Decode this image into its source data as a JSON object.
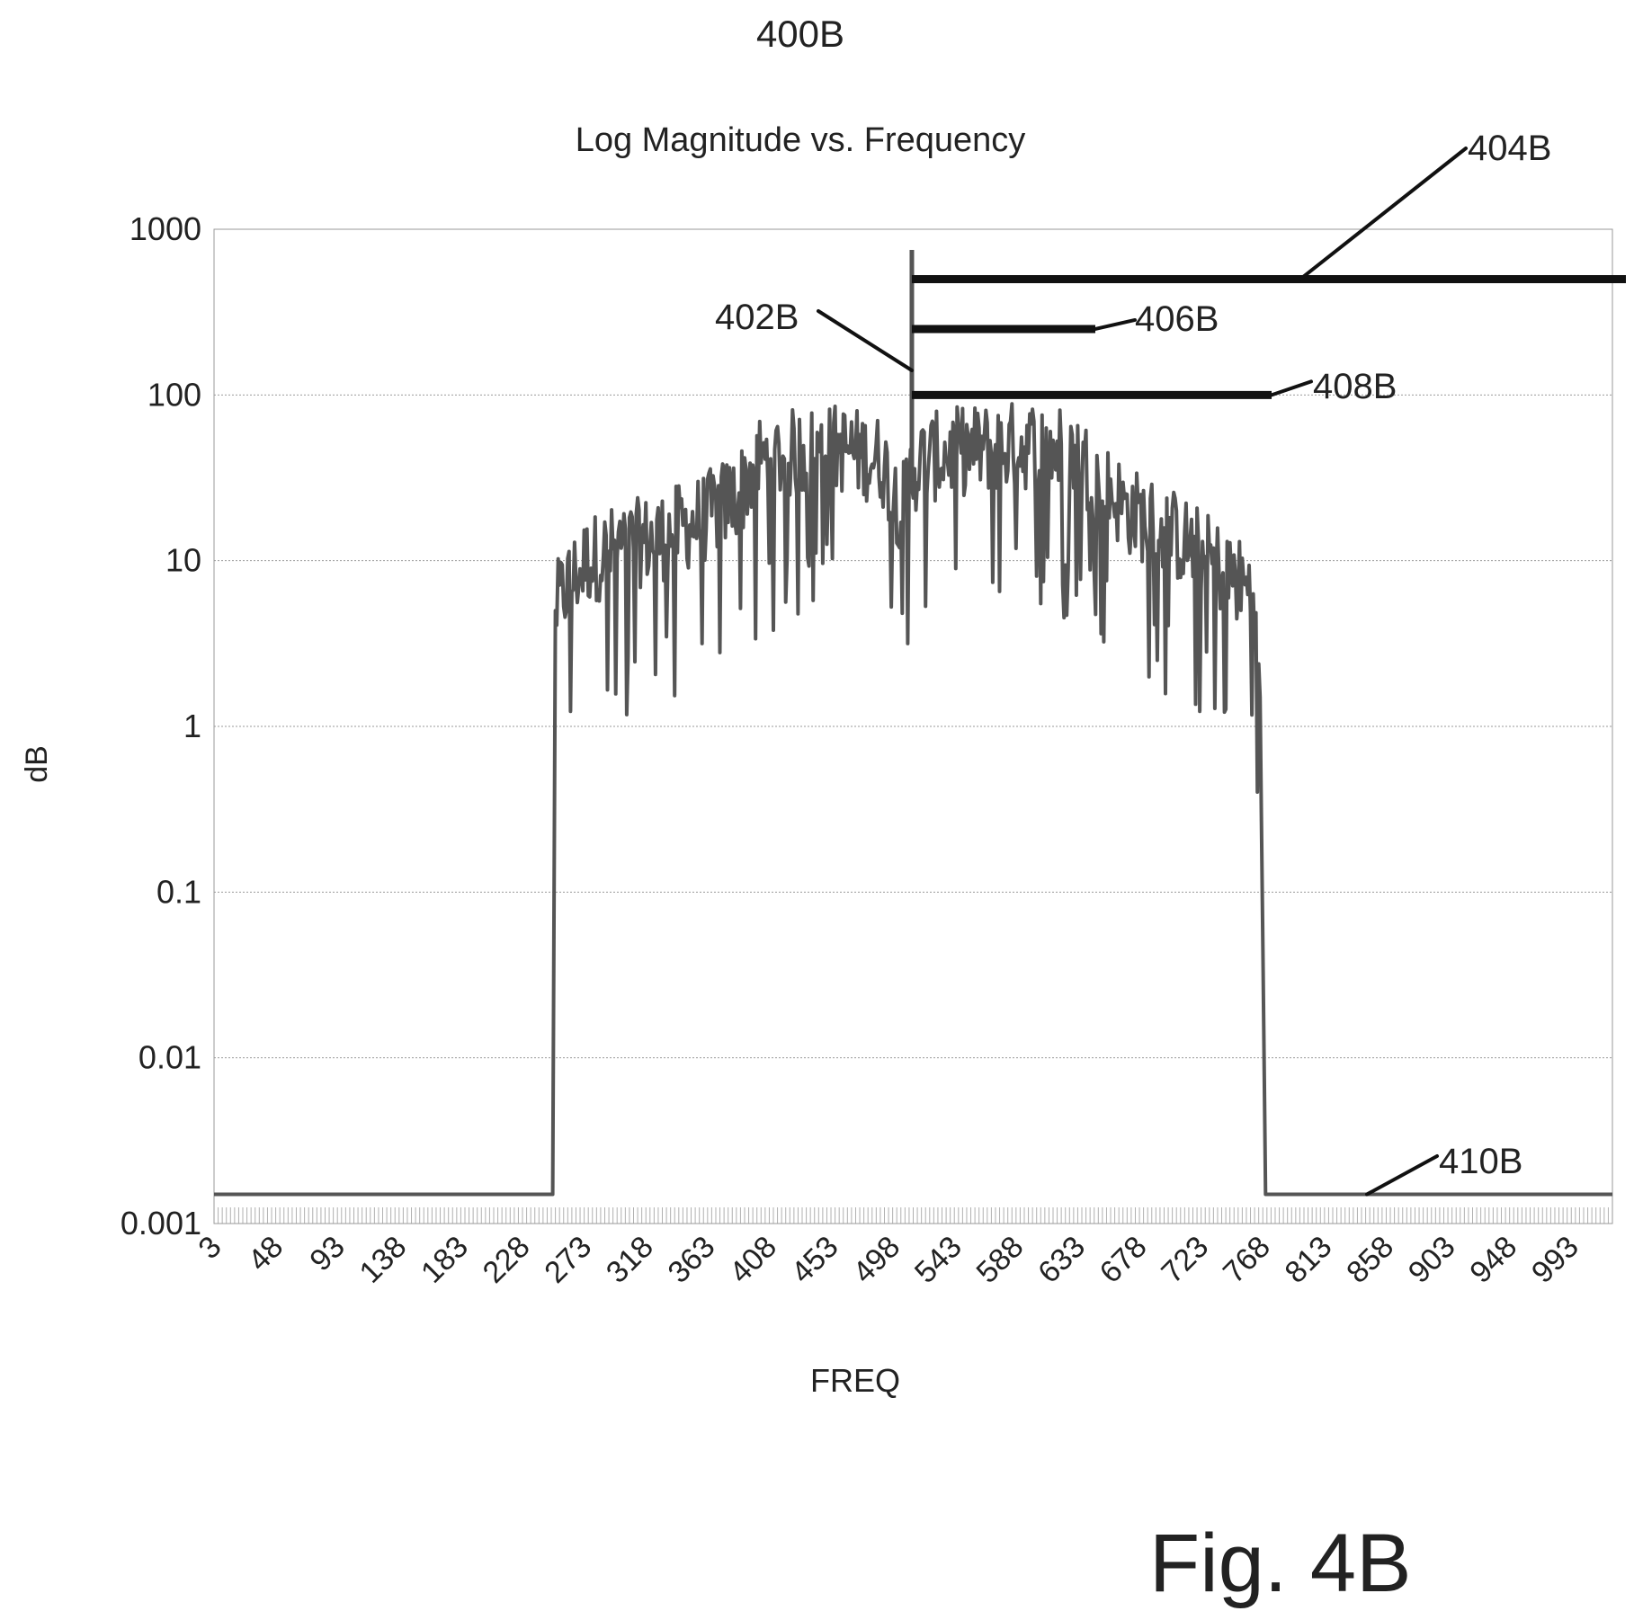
{
  "figure": {
    "ref_number": "400B",
    "fig_label": "Fig. 4B"
  },
  "chart_data": {
    "type": "line",
    "title": "Log Magnitude vs. Frequency",
    "xlabel": "FREQ",
    "ylabel": "dB",
    "y_scale": "log",
    "ylim": [
      0.001,
      1000
    ],
    "y_ticks": [
      "1000",
      "100",
      "10",
      "1",
      "0.1",
      "0.01",
      "0.001"
    ],
    "xlim": [
      3,
      1023
    ],
    "x_ticks": [
      "3",
      "48",
      "93",
      "138",
      "183",
      "228",
      "273",
      "318",
      "363",
      "408",
      "453",
      "498",
      "543",
      "588",
      "633",
      "678",
      "723",
      "768",
      "813",
      "858",
      "903",
      "948",
      "993"
    ],
    "grid": true,
    "series": [
      {
        "color": "#555555",
        "envelope": {
          "x": [
            3,
            250,
            252,
            256,
            260,
            275,
            300,
            330,
            360,
            385,
            400,
            430,
            460,
            490,
            500,
            505,
            512,
            520,
            540,
            570,
            600,
            630,
            650,
            670,
            700,
            730,
            755,
            763,
            766,
            770,
            1023
          ],
          "y": [
            0.0015,
            0.0015,
            5,
            6,
            7,
            10,
            12,
            14,
            18,
            25,
            40,
            45,
            48,
            40,
            25,
            20,
            35,
            40,
            45,
            48,
            50,
            45,
            30,
            20,
            15,
            10,
            7,
            6,
            1.5,
            0.0015,
            0.0015
          ]
        },
        "spike": {
          "x": 512,
          "y": 750
        }
      }
    ],
    "reference_lines": [
      {
        "label": "402B",
        "x": 512
      },
      {
        "label": "404B",
        "y": 500
      },
      {
        "label": "406B",
        "y": 250
      },
      {
        "label": "408B",
        "y": 100
      },
      {
        "label": "410B",
        "y": 0.0015
      }
    ]
  }
}
